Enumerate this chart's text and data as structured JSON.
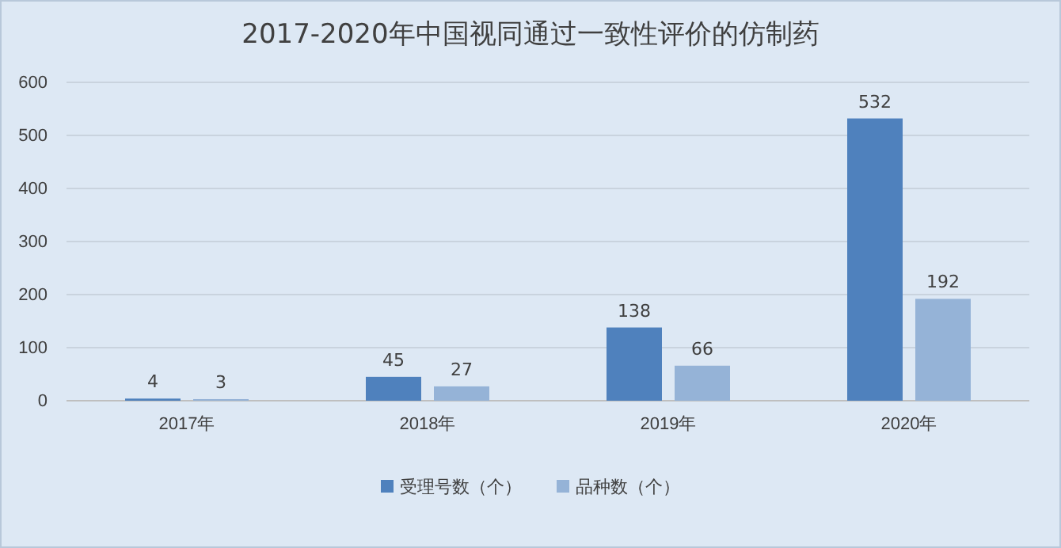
{
  "chart_data": {
    "type": "bar",
    "title": "2017-2020年中国视同通过一致性评价的仿制药",
    "categories": [
      "2017年",
      "2018年",
      "2019年",
      "2020年"
    ],
    "series": [
      {
        "name": "受理号数（个）",
        "color": "#4f81bd",
        "values": [
          4,
          45,
          138,
          532
        ]
      },
      {
        "name": "品种数（个）",
        "color": "#95b3d7",
        "values": [
          3,
          27,
          66,
          192
        ]
      }
    ],
    "ylim": [
      0,
      600
    ],
    "yticks": [
      0,
      100,
      200,
      300,
      400,
      500,
      600
    ],
    "grid": "y",
    "legend": "bottom",
    "data_labels": true
  }
}
